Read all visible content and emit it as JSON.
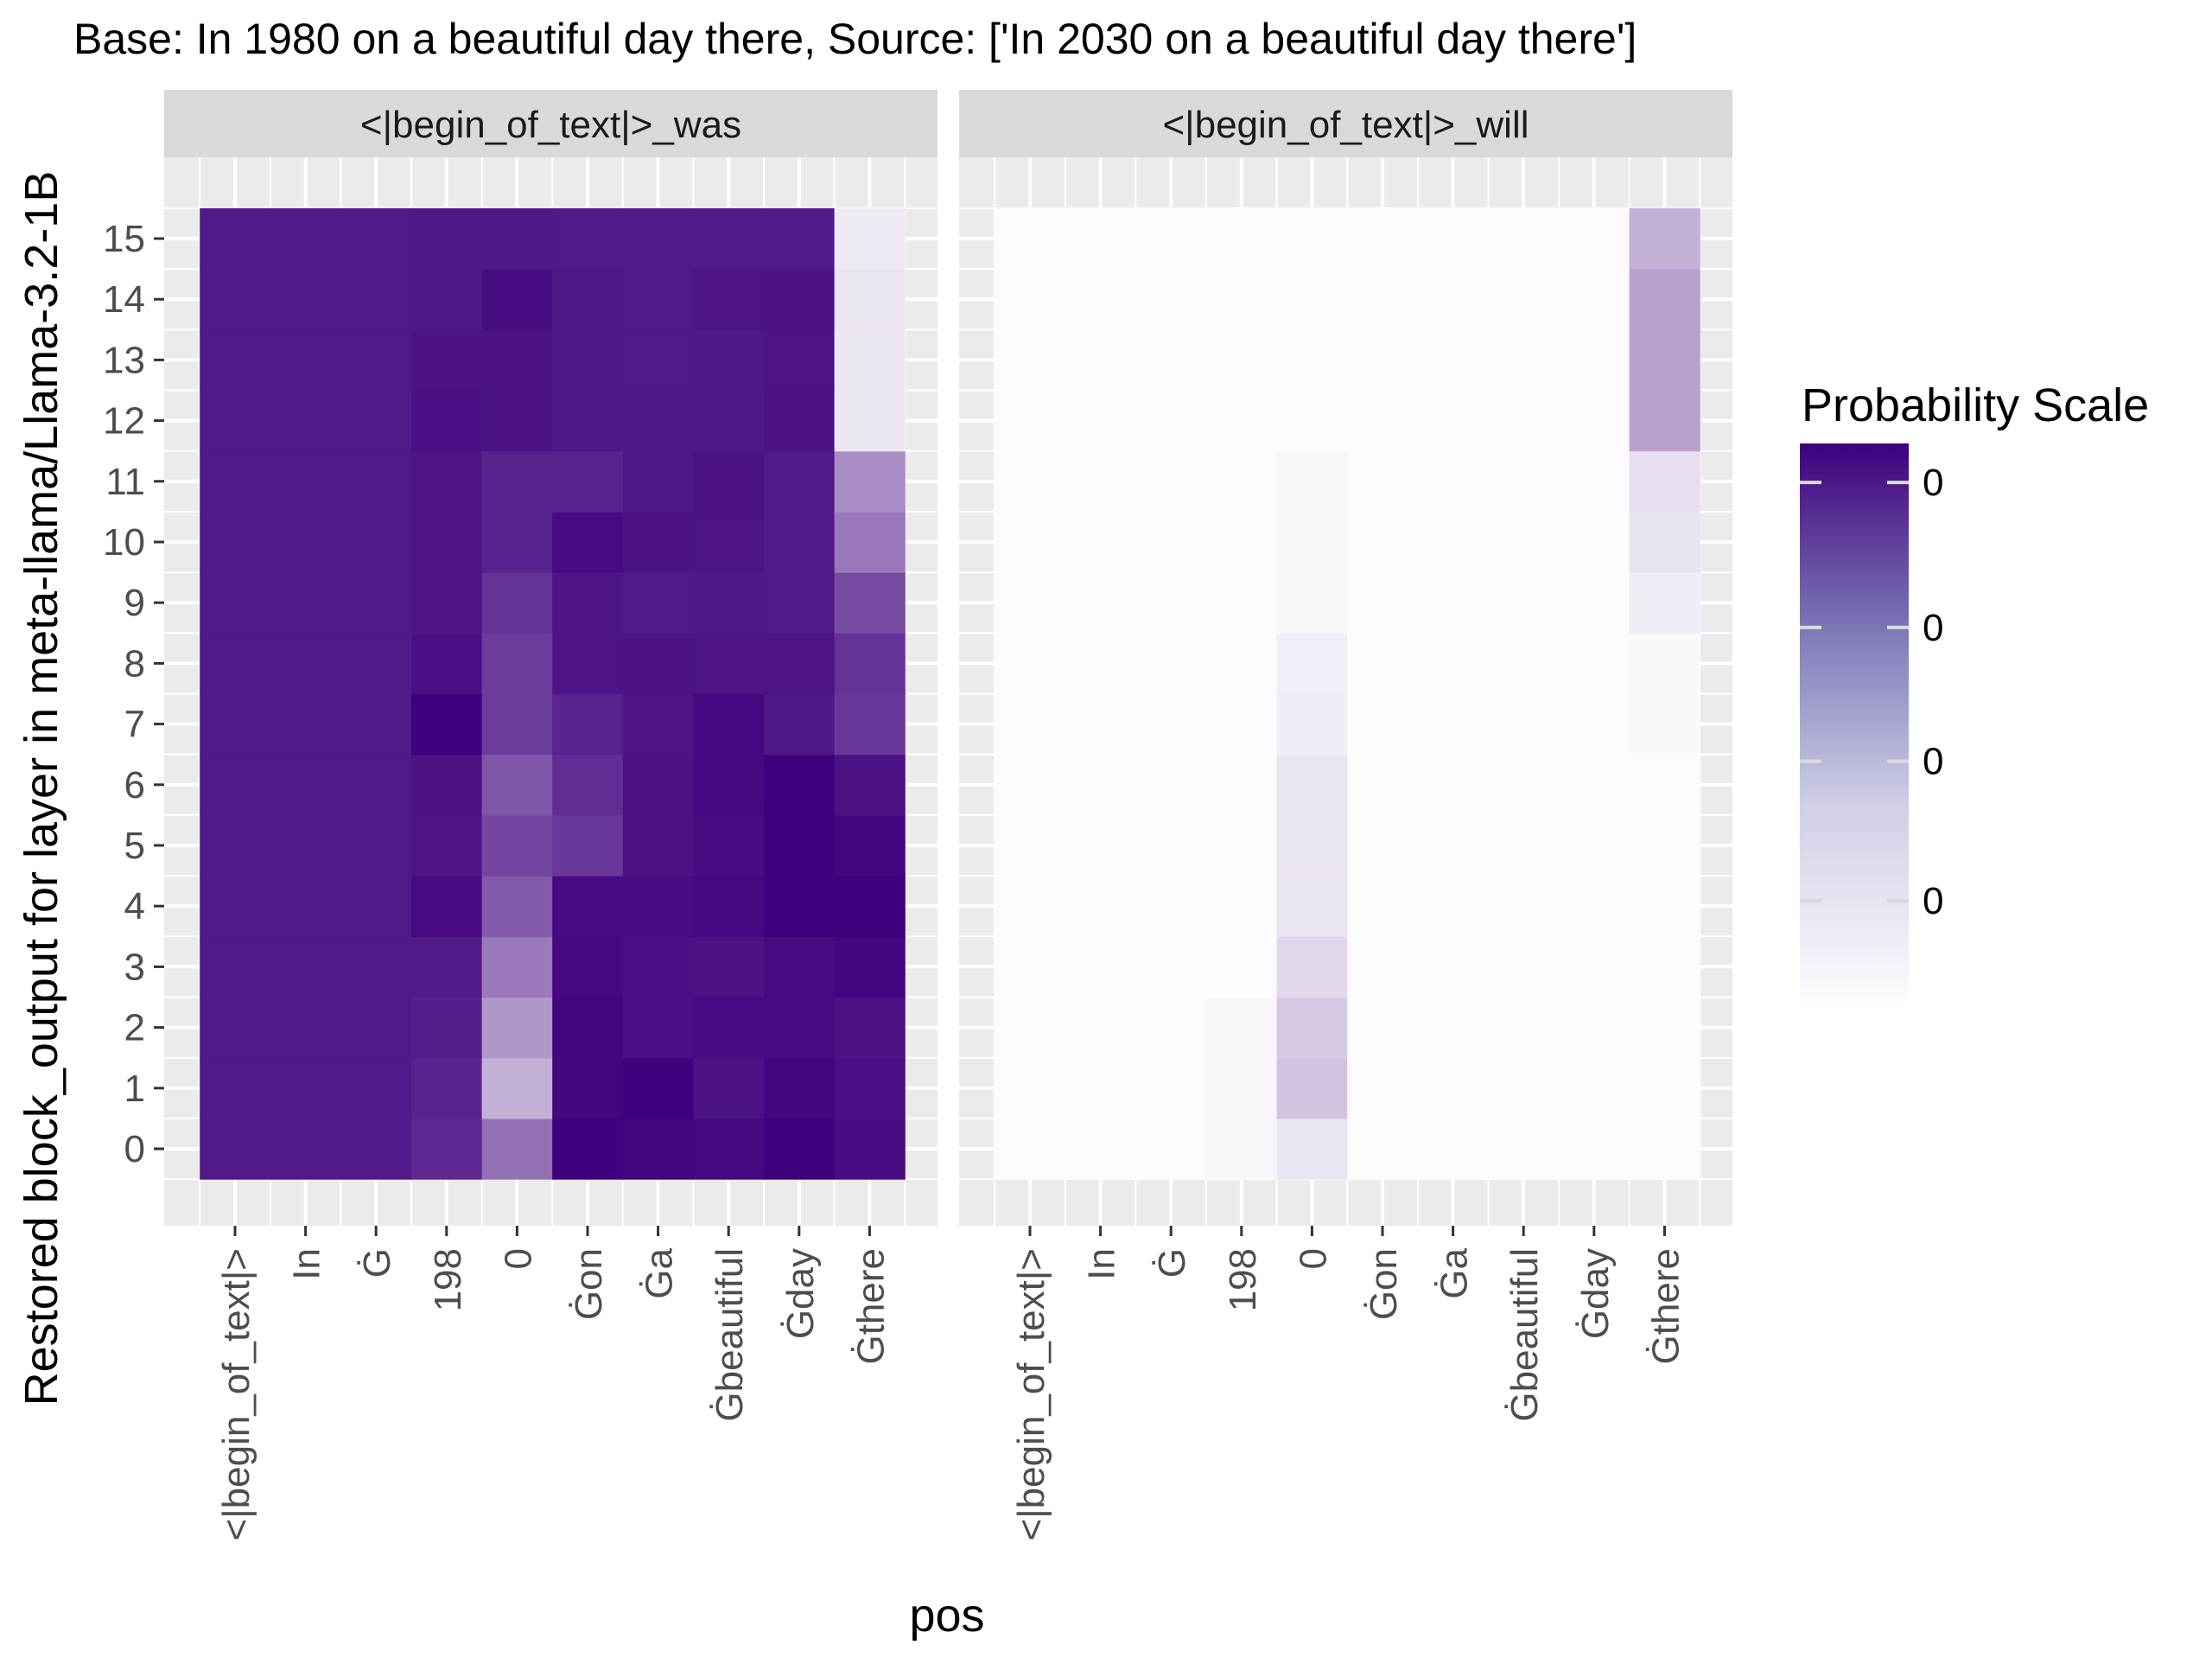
{
  "chart_data": {
    "type": "heatmap",
    "title": "Base: In 1980 on a beautiful day there, Source: ['In 2030 on a beautiful day there']",
    "xlabel": "pos",
    "ylabel": "Restored block_output for layer in meta-llama/Llama-3.2-1B",
    "x_tick_labels": [
      "<|begin_of_text|>",
      "In",
      "Ġ",
      "198",
      "0",
      "Ġon",
      "Ġa",
      "Ġbeautiful",
      "Ġday",
      "Ġthere"
    ],
    "y_tick_labels": [
      "0",
      "1",
      "2",
      "3",
      "4",
      "5",
      "6",
      "7",
      "8",
      "9",
      "10",
      "11",
      "12",
      "13",
      "14",
      "15"
    ],
    "grid": true,
    "color_low": "#FCFBFD",
    "color_high": "#3F007D",
    "legend": {
      "title": "Probability Scale",
      "position": "right",
      "tick_labels": [
        "0",
        "0",
        "0",
        "0"
      ],
      "tick_fractions": [
        0.93,
        0.67,
        0.43,
        0.18
      ]
    },
    "panels": [
      {
        "strip_label": "<|begin_of_text|>_was",
        "values": [
          [
            0.9,
            0.9,
            0.9,
            0.84,
            0.55,
            1.0,
            0.98,
            0.97,
            1.0,
            0.95
          ],
          [
            0.9,
            0.9,
            0.9,
            0.86,
            0.3,
            0.98,
            1.0,
            0.93,
            0.98,
            0.94
          ],
          [
            0.9,
            0.9,
            0.9,
            0.88,
            0.4,
            0.98,
            0.94,
            0.96,
            0.95,
            0.93
          ],
          [
            0.9,
            0.9,
            0.9,
            0.9,
            0.52,
            0.97,
            0.94,
            0.93,
            0.96,
            0.98
          ],
          [
            0.9,
            0.9,
            0.9,
            0.96,
            0.64,
            0.96,
            0.95,
            0.97,
            1.0,
            1.0
          ],
          [
            0.9,
            0.9,
            0.9,
            0.92,
            0.72,
            0.78,
            0.93,
            0.95,
            1.0,
            0.98
          ],
          [
            0.9,
            0.9,
            0.9,
            0.93,
            0.66,
            0.82,
            0.93,
            0.97,
            1.0,
            0.93
          ],
          [
            0.9,
            0.9,
            0.9,
            1.0,
            0.76,
            0.86,
            0.92,
            0.97,
            0.91,
            0.78
          ],
          [
            0.9,
            0.9,
            0.9,
            0.94,
            0.76,
            0.92,
            0.93,
            0.92,
            0.92,
            0.8
          ],
          [
            0.9,
            0.9,
            0.9,
            0.92,
            0.8,
            0.92,
            0.9,
            0.91,
            0.9,
            0.7
          ],
          [
            0.9,
            0.9,
            0.9,
            0.92,
            0.86,
            0.96,
            0.93,
            0.92,
            0.9,
            0.52
          ],
          [
            0.9,
            0.9,
            0.9,
            0.92,
            0.86,
            0.86,
            0.91,
            0.93,
            0.9,
            0.44
          ],
          [
            0.9,
            0.9,
            0.9,
            0.94,
            0.93,
            0.91,
            0.91,
            0.91,
            0.93,
            0.08
          ],
          [
            0.9,
            0.9,
            0.9,
            0.93,
            0.93,
            0.91,
            0.9,
            0.91,
            0.92,
            0.08
          ],
          [
            0.9,
            0.9,
            0.9,
            0.91,
            0.95,
            0.91,
            0.9,
            0.92,
            0.93,
            0.09
          ],
          [
            0.9,
            0.9,
            0.9,
            0.91,
            0.91,
            0.9,
            0.9,
            0.9,
            0.9,
            0.07
          ]
        ]
      },
      {
        "strip_label": "<|begin_of_text|>_will",
        "values": [
          [
            0.0,
            0.0,
            0.0,
            0.02,
            0.09,
            0.0,
            0.0,
            0.0,
            0.0,
            0.0
          ],
          [
            0.0,
            0.0,
            0.0,
            0.01,
            0.22,
            0.0,
            0.0,
            0.0,
            0.0,
            0.0
          ],
          [
            0.0,
            0.0,
            0.0,
            0.01,
            0.2,
            0.0,
            0.0,
            0.0,
            0.0,
            0.0
          ],
          [
            0.0,
            0.0,
            0.0,
            0.0,
            0.14,
            0.0,
            0.0,
            0.0,
            0.0,
            0.0
          ],
          [
            0.0,
            0.0,
            0.0,
            0.0,
            0.09,
            0.0,
            0.0,
            0.0,
            0.0,
            0.0
          ],
          [
            0.0,
            0.0,
            0.0,
            0.0,
            0.09,
            0.0,
            0.0,
            0.0,
            0.0,
            0.0
          ],
          [
            0.0,
            0.0,
            0.0,
            0.0,
            0.09,
            0.0,
            0.0,
            0.0,
            0.0,
            0.0
          ],
          [
            0.0,
            0.0,
            0.0,
            0.0,
            0.06,
            0.0,
            0.0,
            0.0,
            0.0,
            0.01
          ],
          [
            0.0,
            0.0,
            0.0,
            0.0,
            0.05,
            0.0,
            0.0,
            0.0,
            0.0,
            0.01
          ],
          [
            0.0,
            0.0,
            0.0,
            0.0,
            0.02,
            0.0,
            0.0,
            0.0,
            0.0,
            0.06
          ],
          [
            0.0,
            0.0,
            0.0,
            0.0,
            0.02,
            0.0,
            0.0,
            0.0,
            0.0,
            0.1
          ],
          [
            0.0,
            0.0,
            0.0,
            0.0,
            0.02,
            0.0,
            0.0,
            0.0,
            0.0,
            0.11
          ],
          [
            0.0,
            0.0,
            0.0,
            0.0,
            0.0,
            0.0,
            0.0,
            0.0,
            0.0,
            0.36
          ],
          [
            0.0,
            0.0,
            0.0,
            0.0,
            0.0,
            0.0,
            0.0,
            0.0,
            0.0,
            0.36
          ],
          [
            0.0,
            0.0,
            0.0,
            0.0,
            0.0,
            0.0,
            0.0,
            0.0,
            0.0,
            0.36
          ],
          [
            0.0,
            0.0,
            0.0,
            0.0,
            0.0,
            0.0,
            0.0,
            0.0,
            0.0,
            0.3
          ]
        ]
      }
    ]
  }
}
